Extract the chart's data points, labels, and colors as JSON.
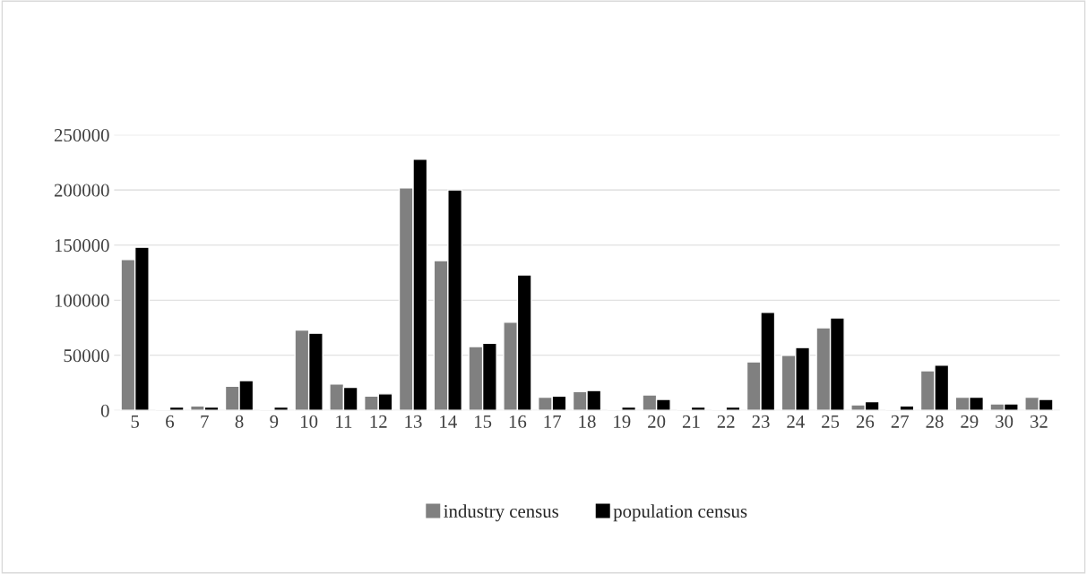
{
  "chart_data": {
    "type": "bar",
    "categories": [
      "5",
      "6",
      "7",
      "8",
      "9",
      "10",
      "11",
      "12",
      "13",
      "14",
      "15",
      "16",
      "17",
      "18",
      "19",
      "20",
      "21",
      "22",
      "23",
      "24",
      "25",
      "26",
      "27",
      "28",
      "29",
      "30",
      "32"
    ],
    "series": [
      {
        "name": "industry census",
        "color": "#808080",
        "values": [
          137000,
          1000,
          4000,
          22000,
          1000,
          73000,
          24000,
          13000,
          202000,
          136000,
          58000,
          80000,
          12000,
          17000,
          1000,
          14000,
          1000,
          1000,
          44000,
          50000,
          75000,
          5000,
          1000,
          36000,
          12000,
          6000,
          12000
        ]
      },
      {
        "name": "population census",
        "color": "#000000",
        "values": [
          148000,
          3000,
          3000,
          27000,
          3000,
          70000,
          21000,
          15000,
          228000,
          200000,
          61000,
          123000,
          13000,
          18000,
          3000,
          10000,
          3000,
          3000,
          89000,
          57000,
          84000,
          8000,
          4000,
          41000,
          12000,
          6000,
          10000
        ]
      }
    ],
    "ylim": [
      0,
      250000
    ],
    "yticks": [
      0,
      50000,
      100000,
      150000,
      200000,
      250000
    ],
    "grid": "y",
    "legend": "bottom"
  }
}
